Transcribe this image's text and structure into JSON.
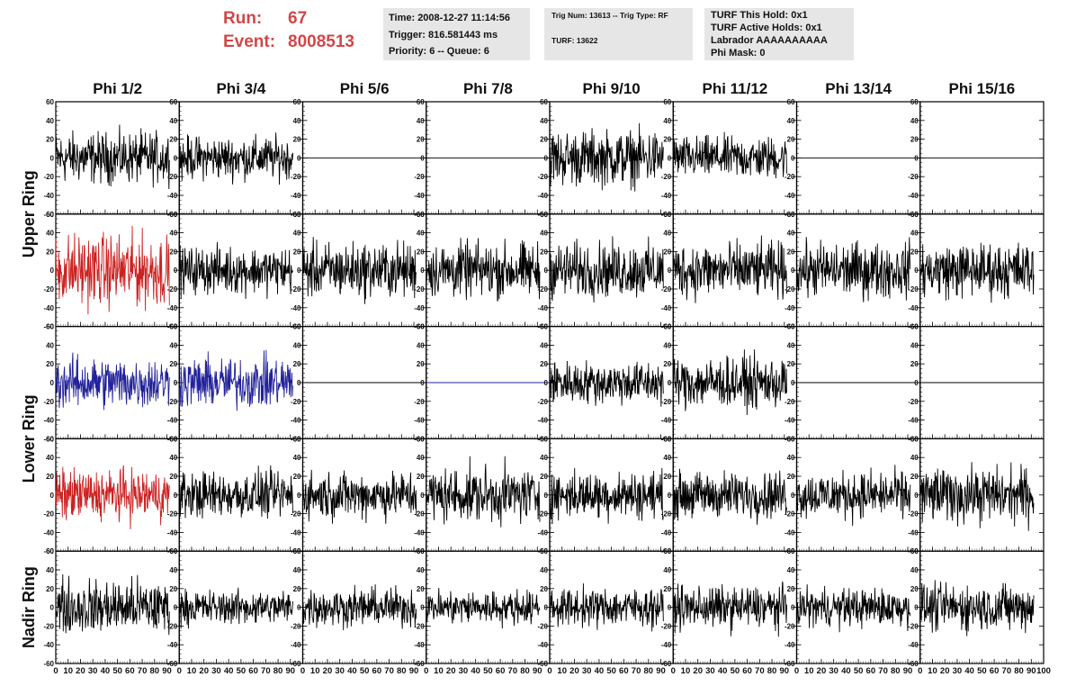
{
  "header": {
    "run_label": "Run:",
    "run_value": "67",
    "event_label": "Event:",
    "event_value": "8008513",
    "time": "Time: 2008-12-27 11:14:56",
    "trigger": "Trigger: 816.581443 ms",
    "priority": "Priority: 6 -- Queue: 6",
    "trig_num": "Trig Num: 13613 -- Trig Type: RF",
    "turf": "TURF: 13622",
    "turf_this_hold": "TURF This Hold: 0x1",
    "turf_active_holds": "TURF Active Holds: 0x1",
    "labrador": "Labrador AAAAAAAAAA",
    "phi_mask": "Phi Mask: 0"
  },
  "colors": {
    "red": "#cc2222",
    "blue": "#22229a",
    "black": "#000000",
    "header_red": "#d04848",
    "box_gray": "#e6e6e6"
  },
  "chart_data": {
    "type": "line",
    "columns": [
      "Phi 1/2",
      "Phi 3/4",
      "Phi 5/6",
      "Phi 7/8",
      "Phi 9/10",
      "Phi 11/12",
      "Phi 13/14",
      "Phi 15/16"
    ],
    "ring_labels": [
      "Upper Ring",
      "Lower Ring",
      "Nadir Ring"
    ],
    "xlim": [
      0,
      100
    ],
    "ylim": [
      -60,
      60
    ],
    "yticks": [
      -60,
      -40,
      -20,
      0,
      20,
      40,
      60
    ],
    "xtick_labels": [
      "0",
      "10",
      "20",
      "30",
      "40",
      "50",
      "60",
      "70",
      "80",
      "90",
      "100"
    ],
    "grid": false,
    "panels": [
      [
        {
          "color": "black",
          "amp": 12,
          "xend": 92
        },
        {
          "color": "black",
          "amp": 10,
          "xend": 92
        },
        {
          "color": "black",
          "amp": 0,
          "xend": 100
        },
        {
          "color": "black",
          "amp": 0,
          "xend": 100
        },
        {
          "color": "black",
          "amp": 13,
          "xend": 92
        },
        {
          "color": "black",
          "amp": 10,
          "xend": 92
        },
        {
          "color": "black",
          "amp": 0,
          "xend": 100
        },
        {
          "color": "black",
          "amp": 0,
          "xend": 100
        }
      ],
      [
        {
          "color": "red",
          "amp": 17,
          "xend": 92
        },
        {
          "color": "black",
          "amp": 11,
          "xend": 92
        },
        {
          "color": "black",
          "amp": 13,
          "xend": 92
        },
        {
          "color": "black",
          "amp": 13,
          "xend": 92
        },
        {
          "color": "black",
          "amp": 13,
          "xend": 92
        },
        {
          "color": "black",
          "amp": 13,
          "xend": 92
        },
        {
          "color": "black",
          "amp": 13,
          "xend": 92
        },
        {
          "color": "black",
          "amp": 13,
          "xend": 92
        }
      ],
      [
        {
          "color": "blue",
          "amp": 12,
          "xend": 92
        },
        {
          "color": "blue",
          "amp": 12,
          "xend": 92
        },
        {
          "color": "black",
          "amp": 0,
          "xend": 100
        },
        {
          "color": "blue",
          "amp": 0,
          "xend": 100
        },
        {
          "color": "black",
          "amp": 10,
          "xend": 92
        },
        {
          "color": "black",
          "amp": 12,
          "xend": 92
        },
        {
          "color": "black",
          "amp": 0,
          "xend": 100
        },
        {
          "color": "black",
          "amp": 0,
          "xend": 100
        }
      ],
      [
        {
          "color": "red",
          "amp": 12,
          "xend": 92
        },
        {
          "color": "black",
          "amp": 11,
          "xend": 92
        },
        {
          "color": "black",
          "amp": 11,
          "xend": 92
        },
        {
          "color": "black",
          "amp": 13,
          "xend": 92
        },
        {
          "color": "black",
          "amp": 11,
          "xend": 92
        },
        {
          "color": "black",
          "amp": 11,
          "xend": 92
        },
        {
          "color": "black",
          "amp": 11,
          "xend": 92
        },
        {
          "color": "black",
          "amp": 13,
          "xend": 92
        }
      ],
      [
        {
          "color": "black",
          "amp": 13,
          "xend": 92
        },
        {
          "color": "black",
          "amp": 8,
          "xend": 92
        },
        {
          "color": "black",
          "amp": 9,
          "xend": 92
        },
        {
          "color": "black",
          "amp": 8,
          "xend": 92
        },
        {
          "color": "black",
          "amp": 9,
          "xend": 92
        },
        {
          "color": "black",
          "amp": 10,
          "xend": 92
        },
        {
          "color": "black",
          "amp": 9,
          "xend": 92
        },
        {
          "color": "black",
          "amp": 11,
          "xend": 92
        }
      ]
    ]
  }
}
